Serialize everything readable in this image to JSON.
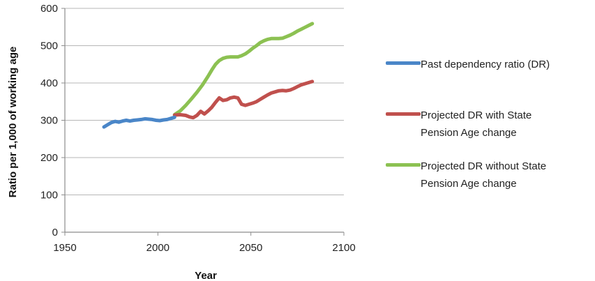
{
  "chart_data": {
    "type": "line",
    "title": "",
    "xlabel": "Year",
    "ylabel": "Ratio per 1,000 of working age",
    "xlim": [
      1950,
      2100
    ],
    "ylim": [
      0,
      600
    ],
    "xticks": [
      1950,
      2000,
      2050,
      2100
    ],
    "yticks": [
      0,
      100,
      200,
      300,
      400,
      500,
      600
    ],
    "grid": "horizontal",
    "legend_position": "right",
    "series": [
      {
        "name": "Past dependency ratio (DR)",
        "color": "#4A86C8",
        "points": [
          [
            1971,
            282
          ],
          [
            1973,
            288
          ],
          [
            1975,
            294
          ],
          [
            1977,
            297
          ],
          [
            1979,
            295
          ],
          [
            1981,
            298
          ],
          [
            1983,
            300
          ],
          [
            1985,
            298
          ],
          [
            1987,
            300
          ],
          [
            1989,
            301
          ],
          [
            1991,
            302
          ],
          [
            1993,
            304
          ],
          [
            1995,
            303
          ],
          [
            1997,
            302
          ],
          [
            1999,
            300
          ],
          [
            2001,
            299
          ],
          [
            2003,
            301
          ],
          [
            2005,
            302
          ],
          [
            2007,
            305
          ],
          [
            2009,
            308
          ]
        ]
      },
      {
        "name": "Projected DR with State Pension Age change",
        "color": "#C0504D",
        "points": [
          [
            2009,
            314
          ],
          [
            2012,
            315
          ],
          [
            2015,
            313
          ],
          [
            2017,
            309
          ],
          [
            2019,
            307
          ],
          [
            2021,
            313
          ],
          [
            2023,
            324
          ],
          [
            2025,
            317
          ],
          [
            2027,
            325
          ],
          [
            2029,
            335
          ],
          [
            2031,
            348
          ],
          [
            2033,
            360
          ],
          [
            2035,
            353
          ],
          [
            2037,
            355
          ],
          [
            2039,
            360
          ],
          [
            2041,
            362
          ],
          [
            2043,
            360
          ],
          [
            2045,
            343
          ],
          [
            2047,
            340
          ],
          [
            2049,
            343
          ],
          [
            2051,
            346
          ],
          [
            2053,
            350
          ],
          [
            2055,
            356
          ],
          [
            2057,
            362
          ],
          [
            2059,
            368
          ],
          [
            2061,
            373
          ],
          [
            2063,
            376
          ],
          [
            2065,
            379
          ],
          [
            2067,
            380
          ],
          [
            2069,
            379
          ],
          [
            2071,
            381
          ],
          [
            2073,
            385
          ],
          [
            2075,
            390
          ],
          [
            2077,
            395
          ],
          [
            2079,
            398
          ],
          [
            2081,
            401
          ],
          [
            2083,
            404
          ]
        ]
      },
      {
        "name": "Projected DR without State Pension Age change",
        "color": "#8CC152",
        "points": [
          [
            2009,
            315
          ],
          [
            2012,
            325
          ],
          [
            2015,
            340
          ],
          [
            2018,
            357
          ],
          [
            2021,
            375
          ],
          [
            2024,
            395
          ],
          [
            2027,
            418
          ],
          [
            2029,
            435
          ],
          [
            2031,
            450
          ],
          [
            2033,
            460
          ],
          [
            2035,
            466
          ],
          [
            2037,
            469
          ],
          [
            2039,
            470
          ],
          [
            2041,
            470
          ],
          [
            2043,
            470
          ],
          [
            2045,
            473
          ],
          [
            2047,
            478
          ],
          [
            2049,
            485
          ],
          [
            2051,
            493
          ],
          [
            2053,
            500
          ],
          [
            2055,
            508
          ],
          [
            2057,
            513
          ],
          [
            2059,
            517
          ],
          [
            2061,
            519
          ],
          [
            2063,
            519
          ],
          [
            2065,
            519
          ],
          [
            2067,
            520
          ],
          [
            2069,
            524
          ],
          [
            2071,
            528
          ],
          [
            2073,
            533
          ],
          [
            2075,
            539
          ],
          [
            2077,
            544
          ],
          [
            2079,
            549
          ],
          [
            2081,
            554
          ],
          [
            2083,
            559
          ]
        ]
      }
    ]
  },
  "legend": {
    "past_label": "Past dependency ratio (DR)",
    "with_label_line1": "Projected DR with State",
    "with_label_line2": "Pension Age change",
    "without_label_line1": "Projected DR without State",
    "without_label_line2": "Pension Age change"
  }
}
